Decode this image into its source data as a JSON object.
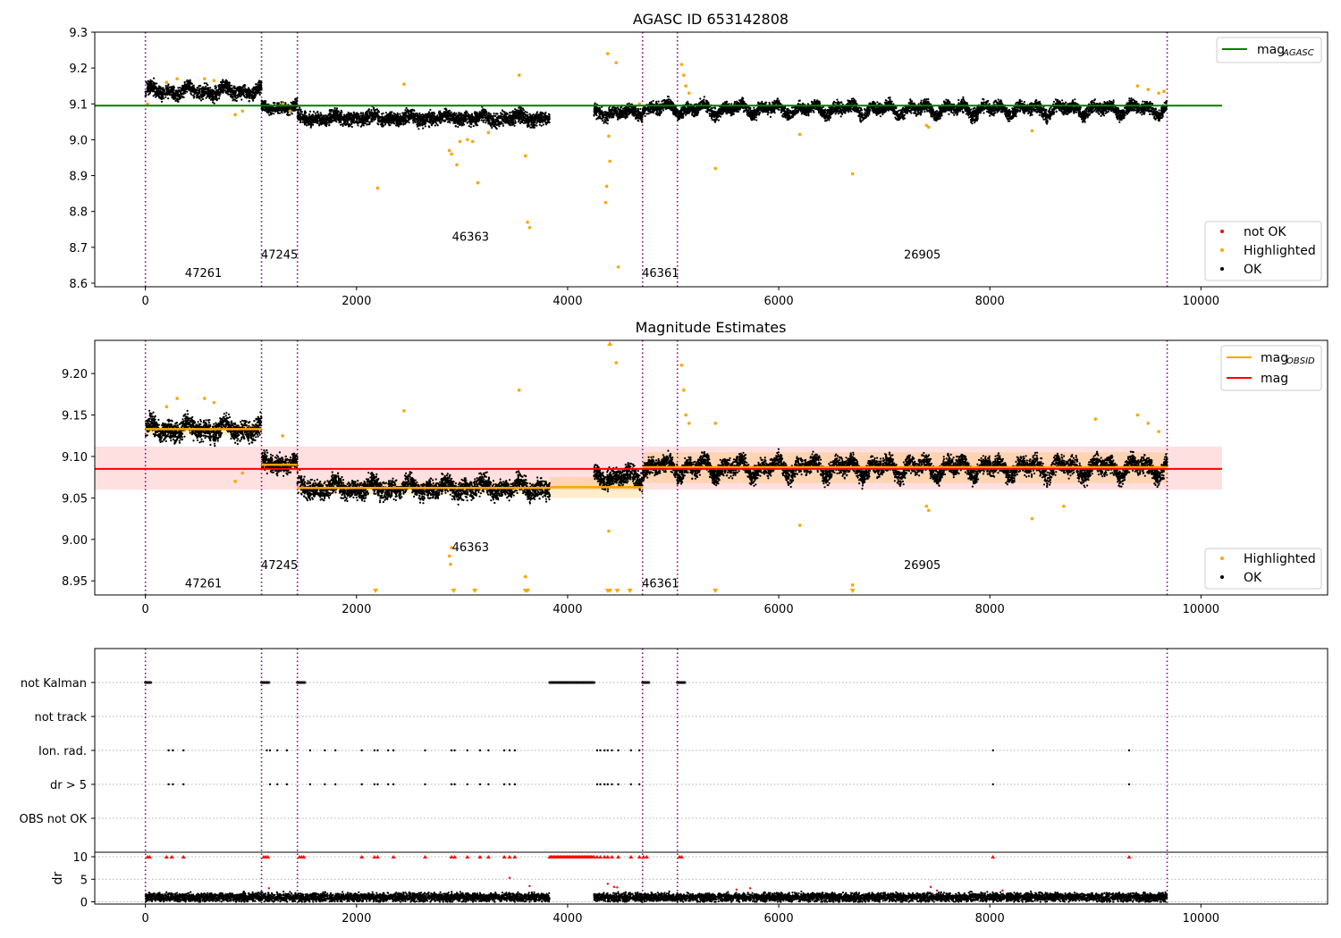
{
  "figure": {
    "background": "#ffffff"
  },
  "chart_data": [
    {
      "type": "scatter",
      "title": "AGASC ID 653142808",
      "xlim": [
        -480,
        11200
      ],
      "ylim": [
        8.59,
        9.3
      ],
      "xticks": [
        0,
        2000,
        4000,
        6000,
        8000,
        10000
      ],
      "yticks": [
        8.6,
        8.7,
        8.8,
        8.9,
        9.0,
        9.1,
        9.2,
        9.3
      ],
      "ytick_labels": [
        "8.6",
        "8.7",
        "8.8",
        "8.9",
        "9.0",
        "9.1",
        "9.2",
        "9.3"
      ],
      "obsid_boundaries": [
        0,
        1100,
        1440,
        4710,
        5040,
        9680
      ],
      "obsid_labels": [
        {
          "text": "47261",
          "x": 550,
          "y": 8.618
        },
        {
          "text": "47245",
          "x": 1270,
          "y": 8.668
        },
        {
          "text": "46363",
          "x": 3080,
          "y": 8.718
        },
        {
          "text": "46361",
          "x": 4880,
          "y": 8.618
        },
        {
          "text": "26905",
          "x": 7360,
          "y": 8.668
        }
      ],
      "reference_line": {
        "name": "mag_AGASC",
        "value": 9.095,
        "x_range": [
          -480,
          10200
        ],
        "color": "#008000"
      },
      "legend_lines": [
        {
          "label": "mag",
          "sub": "AGASC",
          "color": "#008000"
        }
      ],
      "legend_markers": [
        {
          "label": "not OK",
          "color": "#ff0000"
        },
        {
          "label": "Highlighted",
          "color": "#ffa500"
        },
        {
          "label": "OK",
          "color": "#000000"
        }
      ],
      "segments": [
        {
          "x": [
            0,
            1100
          ],
          "mean": 9.135,
          "amp": 0.014,
          "noise": 0.018
        },
        {
          "x": [
            1100,
            1440
          ],
          "mean": 9.09,
          "amp": 0.01,
          "noise": 0.015
        },
        {
          "x": [
            1440,
            3830
          ],
          "mean": 9.06,
          "amp": 0.01,
          "noise": 0.018
        },
        {
          "x": [
            4250,
            4710
          ],
          "mean": 9.075,
          "amp": 0.01,
          "noise": 0.018
        },
        {
          "x": [
            4710,
            5040
          ],
          "mean": 9.088,
          "amp": 0.012,
          "noise": 0.016
        },
        {
          "x": [
            5040,
            9680
          ],
          "mean": 9.085,
          "amp": 0.018,
          "noise": 0.016
        }
      ],
      "highlighted_points": [
        [
          20,
          9.1
        ],
        [
          200,
          9.16
        ],
        [
          300,
          9.17
        ],
        [
          560,
          9.17
        ],
        [
          650,
          9.165
        ],
        [
          850,
          9.07
        ],
        [
          920,
          9.08
        ],
        [
          1300,
          9.1
        ],
        [
          1370,
          9.08
        ],
        [
          2450,
          9.155
        ],
        [
          2200,
          8.865
        ],
        [
          2880,
          8.97
        ],
        [
          2900,
          8.96
        ],
        [
          2950,
          8.93
        ],
        [
          2980,
          8.995
        ],
        [
          3050,
          9.0
        ],
        [
          3100,
          8.995
        ],
        [
          3150,
          8.88
        ],
        [
          3250,
          9.02
        ],
        [
          3540,
          9.18
        ],
        [
          3600,
          8.955
        ],
        [
          3620,
          8.77
        ],
        [
          3640,
          8.755
        ],
        [
          4380,
          9.24
        ],
        [
          4390,
          9.01
        ],
        [
          4400,
          8.94
        ],
        [
          4370,
          8.87
        ],
        [
          4360,
          8.825
        ],
        [
          4460,
          9.215
        ],
        [
          4480,
          8.645
        ],
        [
          4680,
          9.1
        ],
        [
          5080,
          9.21
        ],
        [
          5100,
          9.18
        ],
        [
          5120,
          9.15
        ],
        [
          5150,
          9.13
        ],
        [
          5400,
          8.92
        ],
        [
          6200,
          9.015
        ],
        [
          6700,
          8.905
        ],
        [
          7400,
          9.04
        ],
        [
          7420,
          9.035
        ],
        [
          8400,
          9.025
        ],
        [
          9400,
          9.15
        ],
        [
          9500,
          9.14
        ],
        [
          9600,
          9.13
        ],
        [
          9650,
          9.135
        ]
      ]
    },
    {
      "type": "scatter",
      "title": "Magnitude Estimates",
      "xlim": [
        -480,
        11200
      ],
      "ylim": [
        8.933,
        9.24
      ],
      "xticks": [
        0,
        2000,
        4000,
        6000,
        8000,
        10000
      ],
      "yticks": [
        8.95,
        9.0,
        9.05,
        9.1,
        9.15,
        9.2
      ],
      "ytick_labels": [
        "8.95",
        "9.00",
        "9.05",
        "9.10",
        "9.15",
        "9.20"
      ],
      "obsid_boundaries": [
        0,
        1100,
        1440,
        4710,
        5040,
        9680
      ],
      "obsid_labels": [
        {
          "text": "47261",
          "x": 550,
          "y": 8.942
        },
        {
          "text": "47245",
          "x": 1270,
          "y": 8.964
        },
        {
          "text": "46363",
          "x": 3080,
          "y": 8.986
        },
        {
          "text": "46361",
          "x": 4880,
          "y": 8.942
        },
        {
          "text": "26905",
          "x": 7360,
          "y": 8.964
        }
      ],
      "mag": {
        "value": 9.085,
        "band": [
          9.06,
          9.112
        ],
        "x_range": [
          -480,
          10200
        ],
        "color": "#ff0000"
      },
      "mag_obsid": [
        {
          "x": [
            0,
            1100
          ],
          "value": 9.133,
          "band": [
            9.126,
            9.14
          ]
        },
        {
          "x": [
            1100,
            1440
          ],
          "value": 9.09,
          "band": [
            9.082,
            9.098
          ]
        },
        {
          "x": [
            1440,
            3830
          ],
          "value": 9.062,
          "band": [
            9.055,
            9.069
          ]
        },
        {
          "x": [
            3830,
            4710
          ],
          "value": 9.063,
          "band": [
            9.05,
            9.075
          ]
        },
        {
          "x": [
            4710,
            9680
          ],
          "value": 9.087,
          "band": [
            9.068,
            9.105
          ]
        }
      ],
      "legend_lines": [
        {
          "label": "mag",
          "sub": "OBSID",
          "color": "#ffa500"
        },
        {
          "label": "mag",
          "sub": "",
          "color": "#ff0000"
        }
      ],
      "legend_markers": [
        {
          "label": "Highlighted",
          "color": "#ffa500"
        },
        {
          "label": "OK",
          "color": "#000000"
        }
      ],
      "highlighted_points": [
        [
          200,
          9.16
        ],
        [
          300,
          9.17
        ],
        [
          560,
          9.17
        ],
        [
          650,
          9.165
        ],
        [
          850,
          9.07
        ],
        [
          920,
          9.08
        ],
        [
          1300,
          9.125
        ],
        [
          2450,
          9.155
        ],
        [
          2880,
          8.98
        ],
        [
          2890,
          8.97
        ],
        [
          2900,
          8.99
        ],
        [
          3540,
          9.18
        ],
        [
          3600,
          8.955
        ],
        [
          4390,
          9.01
        ],
        [
          4460,
          9.213
        ],
        [
          5080,
          9.21
        ],
        [
          5100,
          9.18
        ],
        [
          5120,
          9.15
        ],
        [
          5150,
          9.14
        ],
        [
          5400,
          9.14
        ],
        [
          6200,
          9.017
        ],
        [
          6700,
          8.945
        ],
        [
          7400,
          9.04
        ],
        [
          7420,
          9.035
        ],
        [
          8400,
          9.025
        ],
        [
          8700,
          9.04
        ],
        [
          9000,
          9.145
        ],
        [
          9400,
          9.15
        ],
        [
          9500,
          9.14
        ],
        [
          9600,
          9.13
        ]
      ],
      "offscale_low_x": [
        2180,
        2920,
        3120,
        3600,
        3620,
        4380,
        4400,
        4470,
        4590,
        5400,
        6700
      ],
      "offscale_high_x": [
        4400
      ]
    },
    {
      "type": "scatter",
      "title": "",
      "xlim": [
        -480,
        11200
      ],
      "xticks": [
        0,
        2000,
        4000,
        6000,
        8000,
        10000
      ],
      "flag_rows": [
        "not Kalman",
        "not track",
        "Ion. rad.",
        "dr > 5",
        "OBS not OK"
      ],
      "obsid_boundaries": [
        0,
        1100,
        1440,
        4710,
        5040,
        9680
      ],
      "flags": {
        "not Kalman": [
          [
            0,
            50
          ],
          [
            1100,
            1170
          ],
          [
            1440,
            1510
          ],
          [
            3830,
            4250
          ],
          [
            4710,
            4770
          ],
          [
            5040,
            5110
          ]
        ],
        "Ion. rad.": [
          220,
          260,
          360,
          1150,
          1180,
          1250,
          1340,
          1560,
          1700,
          1800,
          2050,
          2170,
          2200,
          2300,
          2350,
          2650,
          2900,
          2930,
          3050,
          3170,
          3250,
          3400,
          3450,
          3500,
          4280,
          4310,
          4350,
          4380,
          4420,
          4480,
          4600,
          4680,
          8030,
          9320
        ],
        "dr > 5": [
          220,
          260,
          360,
          1180,
          1250,
          1340,
          1560,
          1700,
          1800,
          2050,
          2170,
          2200,
          2300,
          2350,
          2650,
          2900,
          2930,
          3050,
          3170,
          3250,
          3400,
          3450,
          3500,
          4280,
          4310,
          4350,
          4380,
          4420,
          4480,
          4600,
          4680,
          8030,
          9320
        ]
      },
      "dr": {
        "ylabel": "dr",
        "ylim": [
          -0.5,
          11
        ],
        "yticks": [
          0,
          5,
          10
        ],
        "ytick_labels": [
          "0",
          "5",
          "10"
        ],
        "clip_value": 10,
        "segments": [
          [
            0,
            1100
          ],
          [
            1100,
            1440
          ],
          [
            1440,
            3830
          ],
          [
            4250,
            4710
          ],
          [
            4710,
            5040
          ],
          [
            5040,
            9680
          ]
        ],
        "clipped_red_x": [
          20,
          40,
          200,
          250,
          360,
          1120,
          1140,
          1160,
          1460,
          1480,
          1500,
          2050,
          2170,
          2200,
          2350,
          2650,
          2900,
          2930,
          3050,
          3170,
          3250,
          3400,
          3450,
          3500,
          4280,
          4310,
          4350,
          4380,
          4420,
          4480,
          4600,
          4680,
          4720,
          4750,
          5060,
          5080,
          8030,
          9320
        ],
        "clipped_red_range": [
          3830,
          4250
        ],
        "scattered_red": [
          [
            1170,
            3
          ],
          [
            3450,
            5.3
          ],
          [
            3640,
            3.5
          ],
          [
            4380,
            4
          ],
          [
            4440,
            3.3
          ],
          [
            4470,
            3.2
          ],
          [
            5600,
            2.7
          ],
          [
            5730,
            3
          ],
          [
            7440,
            3.3
          ],
          [
            7500,
            2.5
          ],
          [
            8120,
            2.5
          ]
        ]
      }
    }
  ]
}
